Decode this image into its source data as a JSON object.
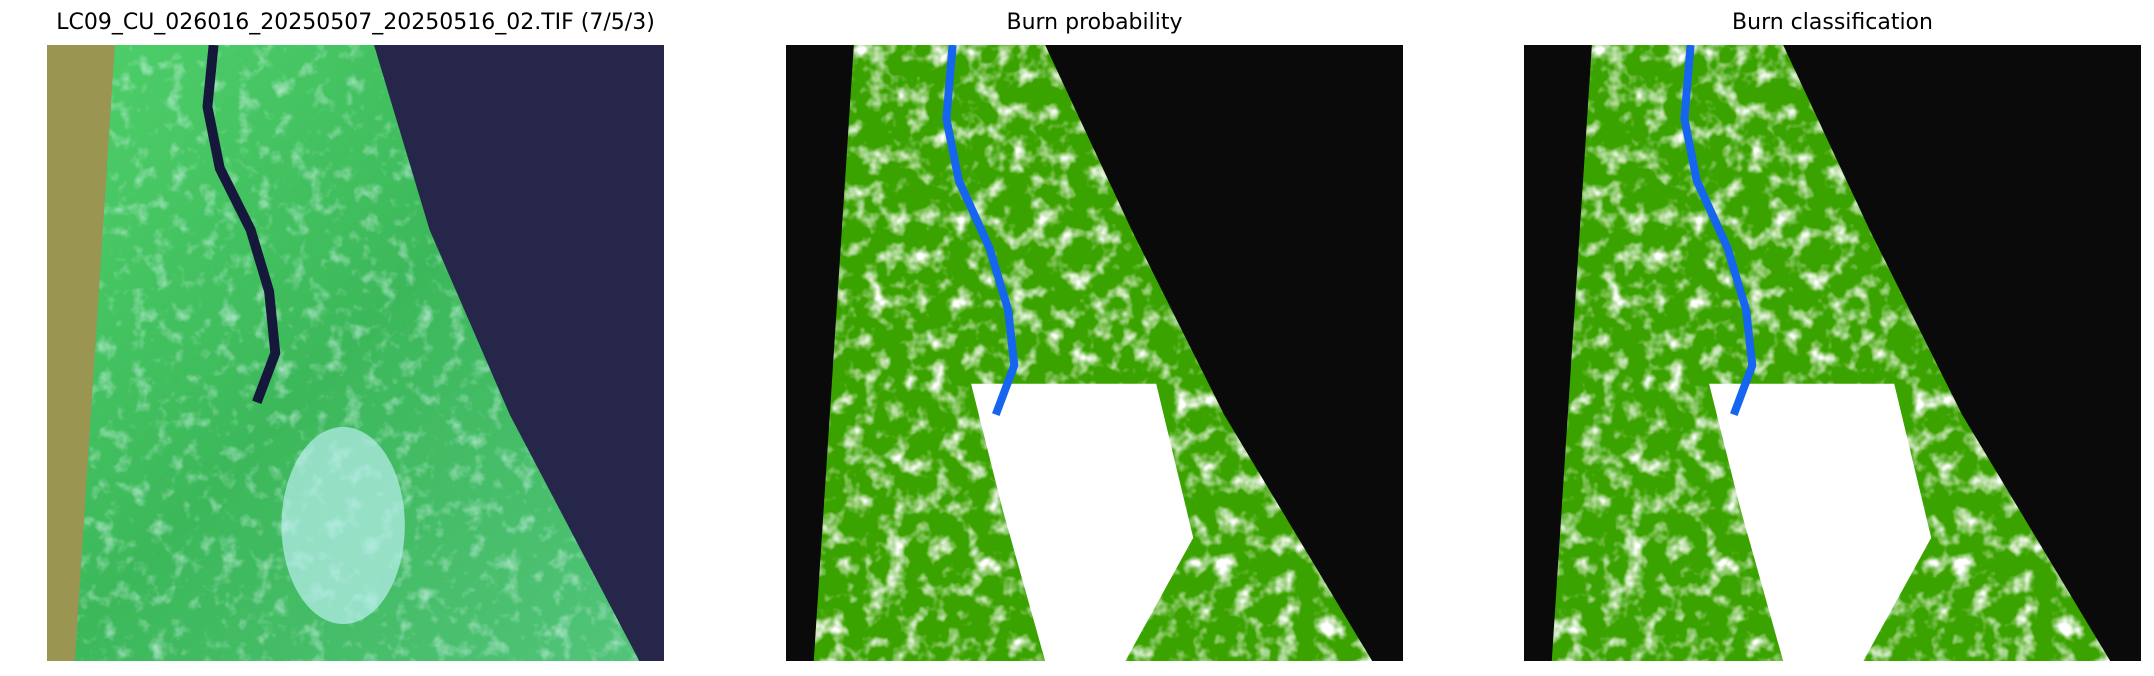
{
  "figure": {
    "panels": [
      {
        "title": "LC09_CU_026016_20250507_20250516_02.TIF (7/5/3)",
        "content": "false-color satellite composite"
      },
      {
        "title": "Burn probability",
        "content": "classified raster map"
      },
      {
        "title": "Burn classification",
        "content": "classified raster map"
      }
    ],
    "colors": {
      "nodata_left": "#9a9550",
      "vegetation": "#3ba300",
      "cloud": "#ffffff",
      "water": "#1565f0",
      "background": "#0a0a0a",
      "ocean": "#25264a"
    }
  }
}
